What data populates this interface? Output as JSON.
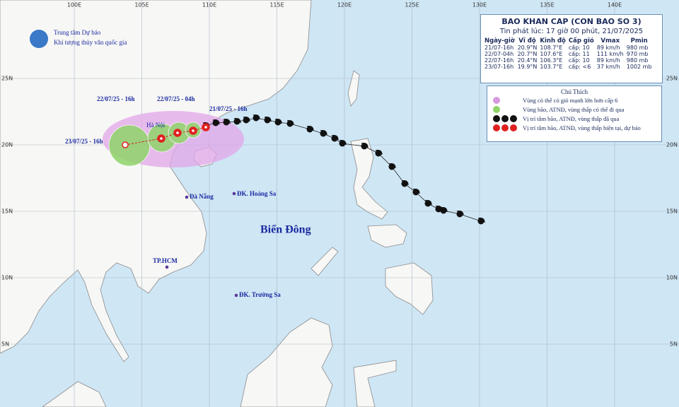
{
  "header": {
    "org_line1": "Trung tâm Dự báo",
    "org_line2": "Khí tượng thủy văn quốc gia"
  },
  "bulletin": {
    "title": "BAO KHAN CAP (CON BAO SO 3)",
    "issued": "Tin phát lúc: 17 giờ 00 phút, 21/07/2025",
    "columns": [
      "Ngày-giờ",
      "Vĩ độ",
      "Kinh độ",
      "Cấp gió",
      "Vmax",
      "Pmin"
    ],
    "rows": [
      [
        "21/07-16h",
        "20.9°N",
        "108.7°E",
        "cấp: 10",
        "89 km/h",
        "980 mb"
      ],
      [
        "22/07-04h",
        "20.7°N",
        "107.6°E",
        "cấp: 11",
        "111 km/h",
        "970 mb"
      ],
      [
        "22/07-16h",
        "20.4°N",
        "106.3°E",
        "cấp: 10",
        "89 km/h",
        "980 mb"
      ],
      [
        "23/07-16h",
        "19.9°N",
        "103.7°E",
        "cấp: <6",
        "37 km/h",
        "1002 mb"
      ]
    ]
  },
  "legend": {
    "title": "Chú Thích",
    "items": [
      "Vùng có thể có gió mạnh lớn hơn cấp 6",
      "Vùng bão, ATNĐ, vùng thấp có thể đi qua",
      "Vị trí tâm bão, ATNĐ, vùng thấp đã qua",
      "Vị trí tâm bão, ATNĐ, vùng thấp hiện tại, dự báo"
    ]
  },
  "axes": {
    "lon": [
      "100E",
      "105E",
      "110E",
      "115E",
      "120E",
      "125E",
      "130E",
      "135E",
      "140E"
    ],
    "lat": [
      "25N",
      "20N",
      "15N",
      "10N",
      "5N"
    ]
  },
  "map_labels": {
    "t_2207_16": "22/07/25 - 16h",
    "t_2207_04": "22/07/25 - 04h",
    "t_2107_16": "21/07/25 - 16h",
    "t_2307_16": "23/07/25 - 16h",
    "hanoi": "Hà Nội",
    "danang": "Đà Nẵng",
    "hoangsa": "ĐK. Hoàng Sa",
    "hcm": "TP.HCM",
    "truongsa": "ĐK. Trường Sa",
    "sea": "Biển Đông"
  }
}
